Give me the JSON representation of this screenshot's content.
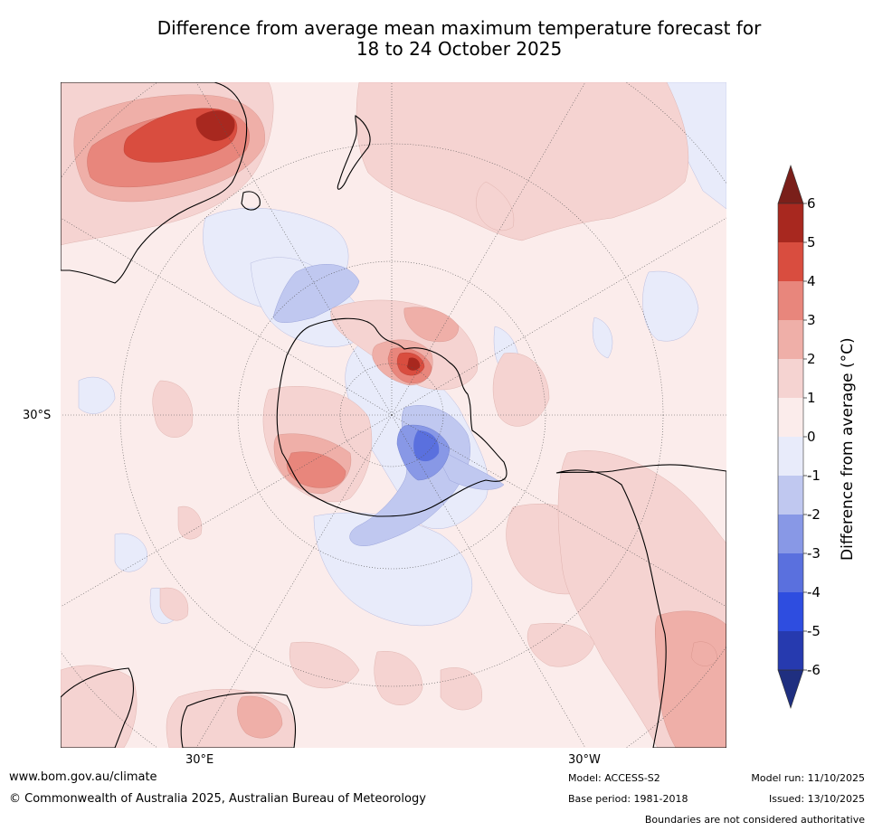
{
  "title": {
    "line1": "Difference from average mean maximum temperature forecast for",
    "line2": "18 to 24 October 2025"
  },
  "map": {
    "type": "polar stereographic anomaly map (Southern Hemisphere)",
    "graticule_labels": {
      "lat": "30°S",
      "lon_east": "30°E",
      "lon_west": "30°W"
    }
  },
  "legend": {
    "label": "Difference from average (°C)",
    "ticks": [
      "6",
      "5",
      "4",
      "3",
      "2",
      "1",
      "0",
      "-1",
      "-2",
      "-3",
      "-4",
      "-5",
      "-6"
    ],
    "colors": {
      "above6": "#7a1f1a",
      "5to6": "#a8281f",
      "4to5": "#d94d3f",
      "3to4": "#e8867c",
      "2to3": "#efafa8",
      "1to2": "#f5d3d1",
      "0to1": "#fbeceb",
      "m1to0": "#e8ebfa",
      "m2tom1": "#c0c8f0",
      "m3tom2": "#8898e6",
      "m4tom3": "#5a70de",
      "m5tom4": "#2e4de0",
      "m6tom5": "#263aaf",
      "belowm6": "#1f2f80"
    }
  },
  "footer": {
    "website": "www.bom.gov.au/climate",
    "copyright": "© Commonwealth of Australia 2025, Australian Bureau of Meteorology",
    "model": "Model: ACCESS-S2",
    "base_period": "Base period: 1981-2018",
    "model_run": "Model run: 11/10/2025",
    "issued": "Issued: 13/10/2025",
    "disclaimer": "Boundaries are not considered authoritative"
  }
}
